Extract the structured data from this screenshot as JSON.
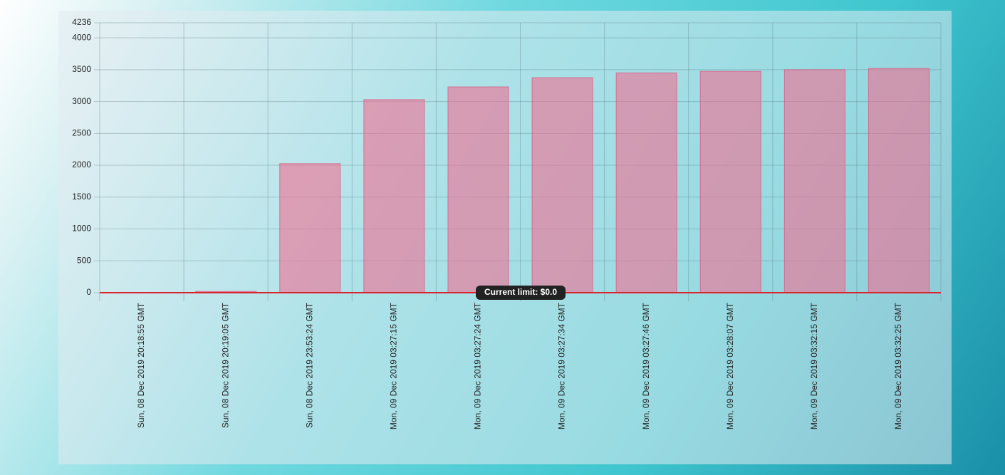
{
  "chart_data": {
    "type": "bar",
    "categories": [
      "Sun, 08 Dec 2019 20:18:55 GMT",
      "Sun, 08 Dec 2019 20:19:05 GMT",
      "Sun, 08 Dec 2019 23:53:24 GMT",
      "Mon, 09 Dec 2019 03:27:15 GMT",
      "Mon, 09 Dec 2019 03:27:24 GMT",
      "Mon, 09 Dec 2019 03:27:34 GMT",
      "Mon, 09 Dec 2019 03:27:46 GMT",
      "Mon, 09 Dec 2019 03:28:07 GMT",
      "Mon, 09 Dec 2019 03:32:15 GMT",
      "Mon, 09 Dec 2019 03:32:25 GMT"
    ],
    "values": [
      0,
      20,
      2025,
      3030,
      3230,
      3375,
      3450,
      3475,
      3500,
      3520
    ],
    "color": "rgba(240, 110, 145, 0.6)",
    "ylim": [
      0,
      4236
    ],
    "yticks": [
      0,
      500,
      1000,
      1500,
      2000,
      2500,
      3000,
      3500,
      4000,
      4236
    ],
    "grid": true,
    "limit": {
      "value": 0,
      "label": "Current limit: $0.0",
      "color": "#d9232d"
    }
  }
}
